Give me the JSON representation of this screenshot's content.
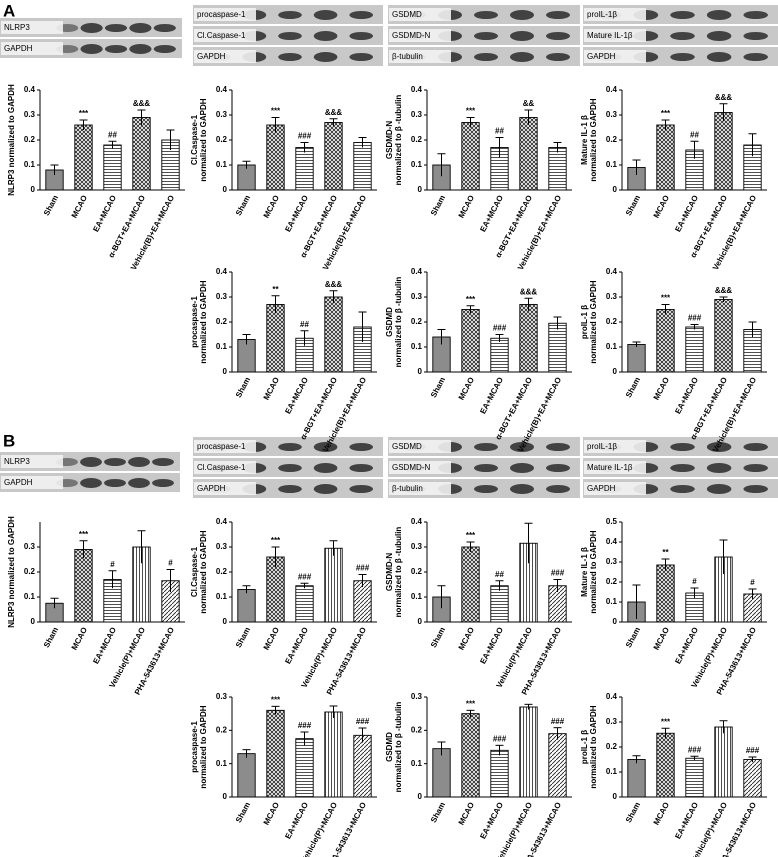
{
  "figure": {
    "panels": [
      {
        "label": "A",
        "blots": [
          [
            "NLRP3",
            "GAPDH"
          ],
          [
            "procaspase-1",
            "Cl.Caspase-1",
            "GAPDH"
          ],
          [
            "GSDMD",
            "GSDMD-N",
            "β-tubulin"
          ],
          [
            "proIL-1β",
            "Mature IL-1β",
            "GAPDH"
          ]
        ]
      },
      {
        "label": "B",
        "blots": [
          [
            "NLRP3",
            "GAPDH"
          ],
          [
            "procaspase-1",
            "Cl.Caspase-1",
            "GAPDH"
          ],
          [
            "GSDMD",
            "GSDMD-N",
            "β-tubulin"
          ],
          [
            "proIL-1β",
            "Mature IL-1β",
            "GAPDH"
          ]
        ]
      }
    ]
  },
  "chart_data": [
    {
      "type": "bar",
      "ylabel": [
        "NLRP3 normalized to GAPDH"
      ],
      "categories": [
        "Sham",
        "MCAO",
        "EA+MCAO",
        "α-BGT+EA+MCAO",
        "Vehicle(B)+EA+MCAO"
      ],
      "values": [
        0.08,
        0.26,
        0.18,
        0.29,
        0.2
      ],
      "errors": [
        0.02,
        0.02,
        0.015,
        0.03,
        0.04
      ],
      "annotations": [
        null,
        "***",
        "##",
        "&&&",
        null
      ],
      "patterns": [
        "solid",
        "cross",
        "hlines",
        "cross",
        "hlines"
      ],
      "ylim": [
        0,
        0.4
      ],
      "yticks": [
        0,
        0.1,
        0.2,
        0.3,
        0.4
      ]
    },
    {
      "type": "bar",
      "ylabel": [
        "Cl.Caspase-1",
        "normalized to GAPDH"
      ],
      "categories": [
        "Sham",
        "MCAO",
        "EA+MCAO",
        "α-BGT+EA+MCAO",
        "Vehicle(B)+EA+MCAO"
      ],
      "values": [
        0.1,
        0.26,
        0.17,
        0.27,
        0.19
      ],
      "errors": [
        0.015,
        0.03,
        0.02,
        0.015,
        0.02
      ],
      "annotations": [
        null,
        "***",
        "###",
        "&&&",
        null
      ],
      "patterns": [
        "solid",
        "cross",
        "hlines",
        "cross",
        "hlines"
      ],
      "ylim": [
        0,
        0.4
      ],
      "yticks": [
        0,
        0.1,
        0.2,
        0.3,
        0.4
      ]
    },
    {
      "type": "bar",
      "ylabel": [
        "GSDMD-N",
        "normalized to β -tubulin"
      ],
      "categories": [
        "Sham",
        "MCAO",
        "EA+MCAO",
        "α-BGT+EA+MCAO",
        "Vehicle(B)+EA+MCAO"
      ],
      "values": [
        0.1,
        0.27,
        0.17,
        0.29,
        0.17
      ],
      "errors": [
        0.045,
        0.02,
        0.04,
        0.03,
        0.02
      ],
      "annotations": [
        null,
        "***",
        "##",
        "&&",
        null
      ],
      "patterns": [
        "solid",
        "cross",
        "hlines",
        "cross",
        "hlines"
      ],
      "ylim": [
        0,
        0.4
      ],
      "yticks": [
        0,
        0.1,
        0.2,
        0.3,
        0.4
      ]
    },
    {
      "type": "bar",
      "ylabel": [
        "Mature IL-1 β",
        "normalized to GAPDH"
      ],
      "categories": [
        "Sham",
        "MCAO",
        "EA+MCAO",
        "α-BGT+EA+MCAO",
        "Vehicle(B)+EA+MCAO"
      ],
      "values": [
        0.09,
        0.26,
        0.16,
        0.31,
        0.18
      ],
      "errors": [
        0.03,
        0.02,
        0.035,
        0.035,
        0.045
      ],
      "annotations": [
        null,
        "***",
        "##",
        "&&&",
        null
      ],
      "patterns": [
        "solid",
        "cross",
        "hlines",
        "cross",
        "hlines"
      ],
      "ylim": [
        0,
        0.4
      ],
      "yticks": [
        0,
        0.1,
        0.2,
        0.3,
        0.4
      ]
    },
    {
      "type": "bar",
      "ylabel": [
        "procaspase-1",
        "normalized to GAPDH"
      ],
      "categories": [
        "Sham",
        "MCAO",
        "EA+MCAO",
        "α-BGT+EA+MCAO",
        "Vehicle(B)+EA+MCAO"
      ],
      "values": [
        0.13,
        0.27,
        0.135,
        0.3,
        0.18
      ],
      "errors": [
        0.02,
        0.035,
        0.03,
        0.025,
        0.06
      ],
      "annotations": [
        null,
        "**",
        "##",
        "&&&",
        null
      ],
      "patterns": [
        "solid",
        "cross",
        "hlines",
        "cross",
        "hlines"
      ],
      "ylim": [
        0,
        0.4
      ],
      "yticks": [
        0,
        0.1,
        0.2,
        0.3,
        0.4
      ]
    },
    {
      "type": "bar",
      "ylabel": [
        "GSDMD",
        "normalized to β -tubulin"
      ],
      "categories": [
        "Sham",
        "MCAO",
        "EA+MCAO",
        "α-BGT+EA+MCAO",
        "Vehicle(B)+EA+MCAO"
      ],
      "values": [
        0.14,
        0.25,
        0.135,
        0.27,
        0.195
      ],
      "errors": [
        0.03,
        0.015,
        0.015,
        0.025,
        0.025
      ],
      "annotations": [
        null,
        "***",
        "###",
        "&&&",
        null
      ],
      "patterns": [
        "solid",
        "cross",
        "hlines",
        "cross",
        "hlines"
      ],
      "ylim": [
        0,
        0.4
      ],
      "yticks": [
        0,
        0.1,
        0.2,
        0.3,
        0.4
      ]
    },
    {
      "type": "bar",
      "ylabel": [
        "proIL-1 β",
        "normalized to GAPDH"
      ],
      "categories": [
        "Sham",
        "MCAO",
        "EA+MCAO",
        "α-BGT+EA+MCAO",
        "Vehicle(B)+EA+MCAO"
      ],
      "values": [
        0.11,
        0.25,
        0.18,
        0.29,
        0.17
      ],
      "errors": [
        0.01,
        0.02,
        0.01,
        0.01,
        0.03
      ],
      "annotations": [
        null,
        "***",
        "###",
        "&&&",
        null
      ],
      "patterns": [
        "solid",
        "cross",
        "hlines",
        "cross",
        "hlines"
      ],
      "ylim": [
        0,
        0.4
      ],
      "yticks": [
        0,
        0.1,
        0.2,
        0.3,
        0.4
      ]
    },
    {
      "type": "bar",
      "ylabel": [
        "NLRP3 normalized to GAPDH"
      ],
      "categories": [
        "Sham",
        "MCAO",
        "EA+MCAO",
        "Vehicle(P)+MCAO",
        "PHA-543613+MCAO"
      ],
      "values": [
        0.075,
        0.29,
        0.17,
        0.3,
        0.165
      ],
      "errors": [
        0.02,
        0.035,
        0.035,
        0.065,
        0.045
      ],
      "annotations": [
        null,
        "***",
        "#",
        null,
        "#"
      ],
      "patterns": [
        "solid",
        "cross",
        "hlines",
        "vlines",
        "diag"
      ],
      "ylim": [
        0,
        0.4
      ],
      "yticks": [
        0,
        0.1,
        0.2,
        0.3
      ]
    },
    {
      "type": "bar",
      "ylabel": [
        "Cl.Caspase-1",
        "normalized to GAPDH"
      ],
      "categories": [
        "Sham",
        "MCAO",
        "EA+MCAO",
        "Vehicle(P)+MCAO",
        "PHA-543613+MCAO"
      ],
      "values": [
        0.13,
        0.26,
        0.145,
        0.295,
        0.165
      ],
      "errors": [
        0.015,
        0.04,
        0.01,
        0.03,
        0.025
      ],
      "annotations": [
        null,
        "***",
        "###",
        null,
        "###"
      ],
      "patterns": [
        "solid",
        "cross",
        "hlines",
        "vlines",
        "diag"
      ],
      "ylim": [
        0,
        0.4
      ],
      "yticks": [
        0,
        0.1,
        0.2,
        0.3,
        0.4
      ]
    },
    {
      "type": "bar",
      "ylabel": [
        "GSDMD-N",
        "normalized to β -tubulin"
      ],
      "categories": [
        "Sham",
        "MCAO",
        "EA+MCAO",
        "Vehicle(P)+MCAO",
        "PHA-543613+MCAO"
      ],
      "values": [
        0.1,
        0.3,
        0.145,
        0.315,
        0.145
      ],
      "errors": [
        0.045,
        0.02,
        0.02,
        0.08,
        0.025
      ],
      "annotations": [
        null,
        "***",
        "##",
        null,
        "###"
      ],
      "patterns": [
        "solid",
        "cross",
        "hlines",
        "vlines",
        "diag"
      ],
      "ylim": [
        0,
        0.4
      ],
      "yticks": [
        0,
        0.1,
        0.2,
        0.3,
        0.4
      ]
    },
    {
      "type": "bar",
      "ylabel": [
        "Mature IL-1 β",
        "normalized to GAPDH"
      ],
      "categories": [
        "Sham",
        "MCAO",
        "EA+MCAO",
        "Vehicle(P)+MCAO",
        "PHA-543613+MCAO"
      ],
      "values": [
        0.1,
        0.285,
        0.145,
        0.325,
        0.14
      ],
      "errors": [
        0.085,
        0.03,
        0.025,
        0.085,
        0.025
      ],
      "annotations": [
        null,
        "**",
        "#",
        null,
        "#"
      ],
      "patterns": [
        "solid",
        "cross",
        "hlines",
        "vlines",
        "diag"
      ],
      "ylim": [
        0,
        0.5
      ],
      "yticks": [
        0,
        0.1,
        0.2,
        0.3,
        0.4,
        0.5
      ]
    },
    {
      "type": "bar",
      "ylabel": [
        "procaspase-1",
        "normalized to GAPDH"
      ],
      "categories": [
        "Sham",
        "MCAO",
        "EA+MCAO",
        "Vehicle(P)+MCAO",
        "PHA-543613+MCAO"
      ],
      "values": [
        0.13,
        0.26,
        0.175,
        0.255,
        0.185
      ],
      "errors": [
        0.012,
        0.012,
        0.02,
        0.018,
        0.022
      ],
      "annotations": [
        null,
        "***",
        "###",
        null,
        "###"
      ],
      "patterns": [
        "solid",
        "cross",
        "hlines",
        "vlines",
        "diag"
      ],
      "ylim": [
        0,
        0.3
      ],
      "yticks": [
        0,
        0.1,
        0.2,
        0.3
      ]
    },
    {
      "type": "bar",
      "ylabel": [
        "GSDMD",
        "normalized to β -tubulin"
      ],
      "categories": [
        "Sham",
        "MCAO",
        "EA+MCAO",
        "Vehicle(P)+MCAO",
        "PHA-543613+MCAO"
      ],
      "values": [
        0.145,
        0.25,
        0.14,
        0.27,
        0.19
      ],
      "errors": [
        0.02,
        0.01,
        0.015,
        0.008,
        0.018
      ],
      "annotations": [
        null,
        "***",
        "###",
        null,
        "###"
      ],
      "patterns": [
        "solid",
        "cross",
        "hlines",
        "vlines",
        "diag"
      ],
      "ylim": [
        0,
        0.3
      ],
      "yticks": [
        0,
        0.1,
        0.2,
        0.3
      ]
    },
    {
      "type": "bar",
      "ylabel": [
        "proIL-1 β",
        "normalized to GAPDH"
      ],
      "categories": [
        "Sham",
        "MCAO",
        "EA+MCAO",
        "Vehicle(P)+MCAO",
        "PHA-543613+MCAO"
      ],
      "values": [
        0.15,
        0.255,
        0.155,
        0.28,
        0.15
      ],
      "errors": [
        0.015,
        0.02,
        0.008,
        0.025,
        0.01
      ],
      "annotations": [
        null,
        "***",
        "###",
        null,
        "###"
      ],
      "patterns": [
        "solid",
        "cross",
        "hlines",
        "vlines",
        "diag"
      ],
      "ylim": [
        0,
        0.4
      ],
      "yticks": [
        0,
        0.1,
        0.2,
        0.3,
        0.4
      ]
    }
  ]
}
